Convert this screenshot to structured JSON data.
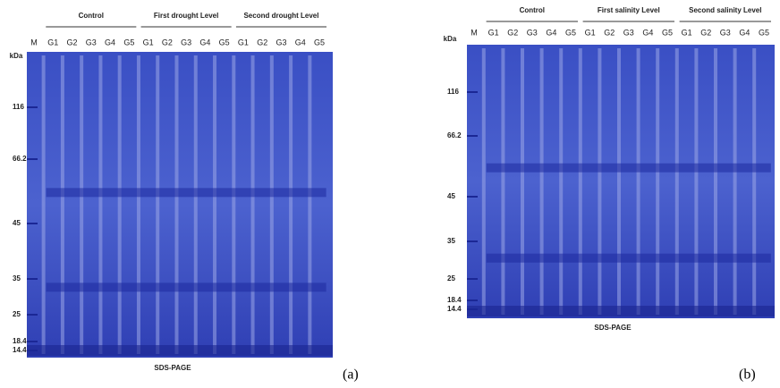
{
  "panels": [
    {
      "letter": "(a)",
      "groups": [
        "Control",
        "First drought Level",
        "Second drought Level"
      ],
      "lanes": [
        "M",
        "G1",
        "G2",
        "G3",
        "G4",
        "G5",
        "G1",
        "G2",
        "G3",
        "G4",
        "G5",
        "G1",
        "G2",
        "G3",
        "G4",
        "G5"
      ],
      "unit": "kDa",
      "markers": [
        "116",
        "66.2",
        "45",
        "35",
        "25",
        "18.4",
        "14.4"
      ],
      "caption": "SDS-PAGE"
    },
    {
      "letter": "(b)",
      "groups": [
        "Control",
        "First salinity Level",
        "Second salinity Level"
      ],
      "lanes": [
        "M",
        "G1",
        "G2",
        "G3",
        "G4",
        "G5",
        "G1",
        "G2",
        "G3",
        "G4",
        "G5",
        "G1",
        "G2",
        "G3",
        "G4",
        "G5"
      ],
      "unit": "kDa",
      "markers": [
        "116",
        "66.2",
        "45",
        "35",
        "25",
        "18.4",
        "14.4"
      ],
      "caption": "SDS-PAGE"
    }
  ]
}
